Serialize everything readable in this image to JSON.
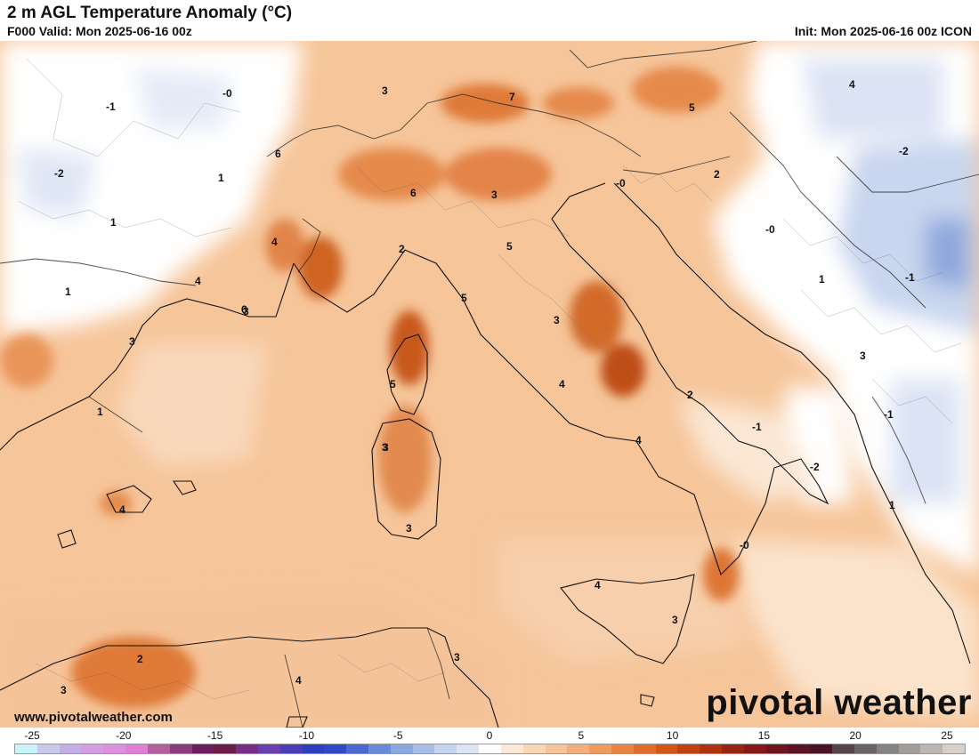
{
  "header": {
    "title": "2 m AGL Temperature Anomaly (°C)",
    "valid": "F000 Valid: Mon 2025-06-16 00z",
    "init": "Init: Mon 2025-06-16 00z ICON"
  },
  "footer": {
    "website": "www.pivotalweather.com",
    "brand": "pivotal weather"
  },
  "map": {
    "region": "Western Mediterranean / Italy",
    "contour_labels": [
      "-1",
      "-0",
      "-2",
      "1",
      "1",
      "1",
      "3",
      "3",
      "7",
      "5",
      "4",
      "6",
      "3",
      "6",
      "4",
      "4",
      "6",
      "2",
      "5",
      "5",
      "3",
      "4",
      "5",
      "3",
      "-0",
      "2",
      "-2",
      "-0",
      "1",
      "-1",
      "3",
      "-1",
      "2",
      "-1",
      "-2",
      "1",
      "3",
      "4",
      "3",
      "4",
      "3",
      "1",
      "-0",
      "4",
      "3",
      "2",
      "3",
      "4",
      "3"
    ],
    "colors": {
      "sea_anomaly": "#f6c08e",
      "warm_core": "#d9702c",
      "hot_core": "#b24a13",
      "cool": "#cfdaf0",
      "cold": "#9fb3e0",
      "neutral": "#ffffff"
    }
  },
  "colorbar": {
    "ticks": [
      "-25",
      "-20",
      "-15",
      "-10",
      "-5",
      "0",
      "5",
      "10",
      "15",
      "20",
      "25"
    ],
    "colors": [
      "#c8f3fb",
      "#c9c9ee",
      "#c3aee6",
      "#d59ee0",
      "#dd8fe0",
      "#e07fd6",
      "#b45fa0",
      "#8a3d7e",
      "#6c1f5f",
      "#6e1c4a",
      "#7a2d86",
      "#6a3fb0",
      "#4a3eb7",
      "#2f3fbd",
      "#3249c6",
      "#4a68cf",
      "#6a8bd9",
      "#8ba8e2",
      "#a7bfe8",
      "#c3d3ee",
      "#dbe4f3",
      "#ffffff",
      "#fbe9d6",
      "#f8d7b4",
      "#f6c39a",
      "#f3ae7c",
      "#ef9a5e",
      "#e98444",
      "#e06c2b",
      "#d45617",
      "#c2420e",
      "#ae3210",
      "#9a2414",
      "#861a18",
      "#701420",
      "#5e1324",
      "#4b1328",
      "#55444a",
      "#6a6466",
      "#858383",
      "#a09d9b",
      "#bcb6b0",
      "#d8d0c8"
    ]
  }
}
